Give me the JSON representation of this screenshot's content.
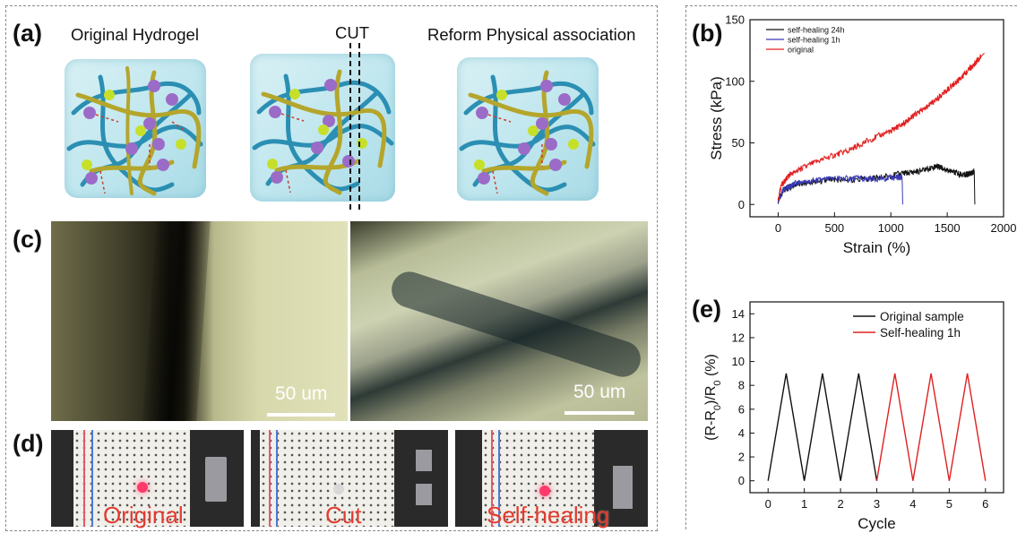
{
  "panels": {
    "a": {
      "letter": "(a)",
      "titles": {
        "original": "Original Hydrogel",
        "cut": "CUT",
        "reform": "Reform Physical association"
      }
    },
    "b": {
      "letter": "(b)"
    },
    "c": {
      "letter": "(c)",
      "scale_left": "50 um",
      "scale_right": "50 um"
    },
    "d": {
      "letter": "(d)",
      "captions": [
        "Original",
        "Cut",
        "Self-healing"
      ]
    },
    "e": {
      "letter": "(e)"
    }
  },
  "colors": {
    "chain_blue": "#2b8fb3",
    "chain_olive": "#b4a62c",
    "sphere_purple": "#9b6cc7",
    "sphere_green": "#c6e02a",
    "bond_red": "#d23a2a",
    "caption_red": "#e23a2e"
  },
  "chart_data": [
    {
      "type": "line",
      "panel": "(b)",
      "xlabel": "Strain (%)",
      "ylabel": "Stress (kPa)",
      "xlim": [
        -250,
        2000
      ],
      "ylim": [
        -10,
        150
      ],
      "xticks": [
        0,
        500,
        1000,
        1500,
        2000
      ],
      "yticks": [
        0,
        50,
        100,
        150
      ],
      "legend": "top-left",
      "series": [
        {
          "name": "self-healing 24h",
          "color": "#111111",
          "x": [
            0,
            50,
            150,
            300,
            500,
            700,
            900,
            1100,
            1250,
            1400,
            1450,
            1550,
            1650,
            1700,
            1740,
            1745
          ],
          "y": [
            3,
            12,
            16,
            18,
            20,
            20,
            22,
            25,
            27,
            31,
            30,
            26,
            24,
            25,
            27,
            0
          ]
        },
        {
          "name": "self-healing 1h",
          "color": "#3a3ab8",
          "x": [
            0,
            50,
            150,
            300,
            500,
            700,
            900,
            1050,
            1100,
            1105
          ],
          "y": [
            3,
            12,
            17,
            19,
            21,
            21,
            21,
            22,
            22,
            0
          ]
        },
        {
          "name": "original",
          "color": "#e02020",
          "x": [
            0,
            25,
            100,
            200,
            400,
            600,
            800,
            1000,
            1100,
            1200,
            1300,
            1400,
            1500,
            1600,
            1700,
            1800,
            1830
          ],
          "y": [
            3,
            15,
            24,
            29,
            37,
            43,
            52,
            60,
            65,
            72,
            78,
            85,
            93,
            101,
            110,
            120,
            123
          ]
        }
      ]
    },
    {
      "type": "line",
      "panel": "(e)",
      "xlabel": "Cycle",
      "ylabel": "(R-R0)/R0 (%)",
      "xlim": [
        -0.5,
        6.5
      ],
      "ylim": [
        -1,
        15
      ],
      "xticks": [
        0,
        1,
        2,
        3,
        4,
        5,
        6
      ],
      "yticks": [
        0,
        2,
        4,
        6,
        8,
        10,
        12,
        14
      ],
      "legend": "top-right",
      "series": [
        {
          "name": "Original sample",
          "color": "#111111",
          "x": [
            0,
            0.5,
            1,
            1.5,
            2,
            2.5,
            3
          ],
          "y": [
            0,
            9,
            0,
            9,
            0,
            9,
            0
          ]
        },
        {
          "name": "Self-healing 1h",
          "color": "#e02020",
          "x": [
            3,
            3.5,
            4,
            4.5,
            5,
            5.5,
            6
          ],
          "y": [
            0,
            9,
            0,
            9,
            0,
            9,
            0
          ]
        }
      ]
    }
  ]
}
